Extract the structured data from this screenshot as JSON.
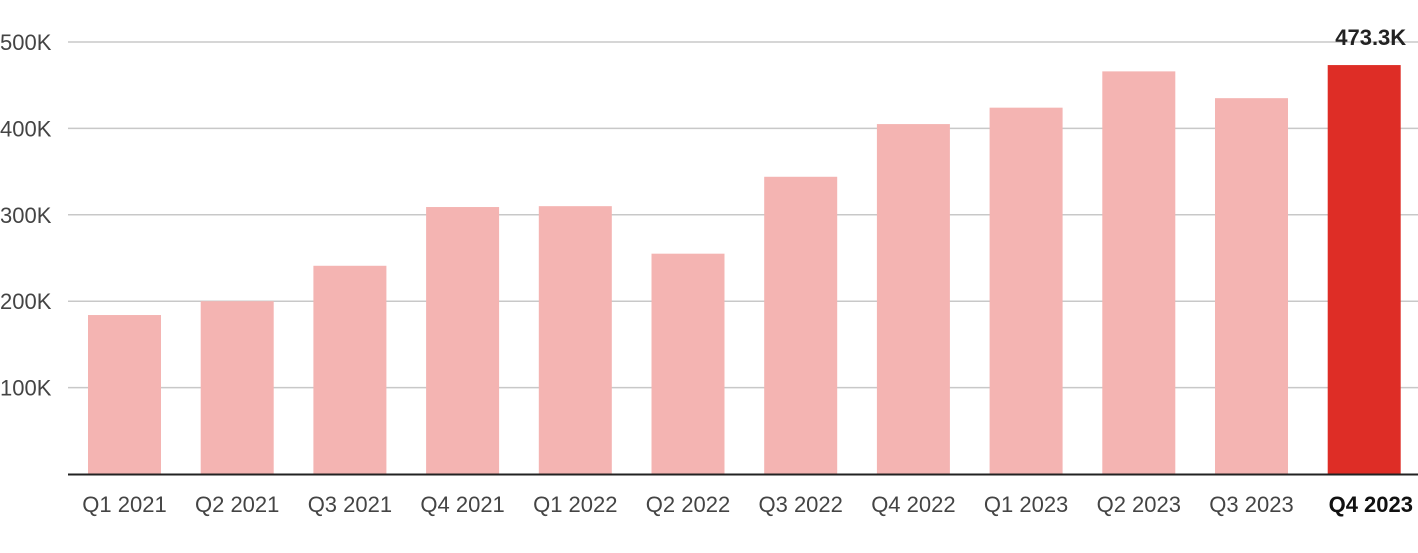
{
  "chart_data": {
    "type": "bar",
    "categories": [
      "Q1 2021",
      "Q2 2021",
      "Q3 2021",
      "Q4 2021",
      "Q1 2022",
      "Q2 2022",
      "Q3 2022",
      "Q4 2022",
      "Q1 2023",
      "Q2 2023",
      "Q3 2023",
      "Q4 2023"
    ],
    "values": [
      184000,
      200000,
      241000,
      309000,
      310000,
      255000,
      344000,
      405000,
      424000,
      466000,
      435000,
      473300
    ],
    "title": "",
    "xlabel": "",
    "ylabel": "",
    "ylim": [
      0,
      500000
    ],
    "yticks": [
      100000,
      200000,
      300000,
      400000,
      500000
    ],
    "ytick_labels": [
      "100K",
      "200K",
      "300K",
      "400K",
      "500K"
    ],
    "grid": true,
    "highlight_index": 11,
    "highlight_value_label": "473.3K",
    "colors": {
      "bar": "#f4b4b2",
      "highlight": "#de2d26",
      "grid": "#c8c8c8",
      "axis": "#222222"
    }
  }
}
